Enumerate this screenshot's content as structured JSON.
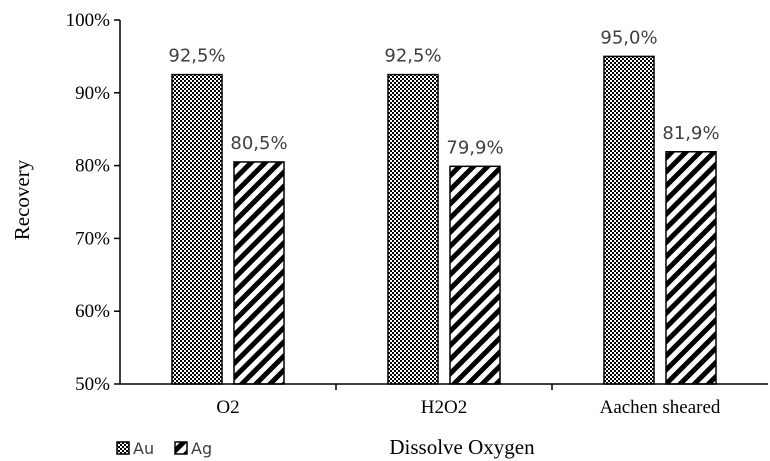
{
  "chart_data": {
    "type": "bar",
    "categories": [
      "O2",
      "H2O2",
      "Aachen sheared"
    ],
    "series": [
      {
        "name": "Au",
        "values": [
          92.5,
          92.5,
          95.0
        ],
        "labels": [
          "92,5%",
          "92,5%",
          "95,0%"
        ],
        "pattern": "checker"
      },
      {
        "name": "Ag",
        "values": [
          80.5,
          79.9,
          81.9
        ],
        "labels": [
          "80,5%",
          "79,9%",
          "81,9%"
        ],
        "pattern": "diagonal-stripes"
      }
    ],
    "xlabel": "Dissolve Oxygen",
    "ylabel": "Recovery",
    "ylim": [
      50,
      100
    ],
    "yticks": [
      50,
      60,
      70,
      80,
      90,
      100
    ],
    "ytick_labels": [
      "50%",
      "60%",
      "70%",
      "80%",
      "90%",
      "100%"
    ],
    "grid": false,
    "legend": "bottom-left",
    "colors": {
      "fill": "#000000",
      "background": "#ffffff",
      "axis": "#000000",
      "data_label": "#404040"
    }
  }
}
